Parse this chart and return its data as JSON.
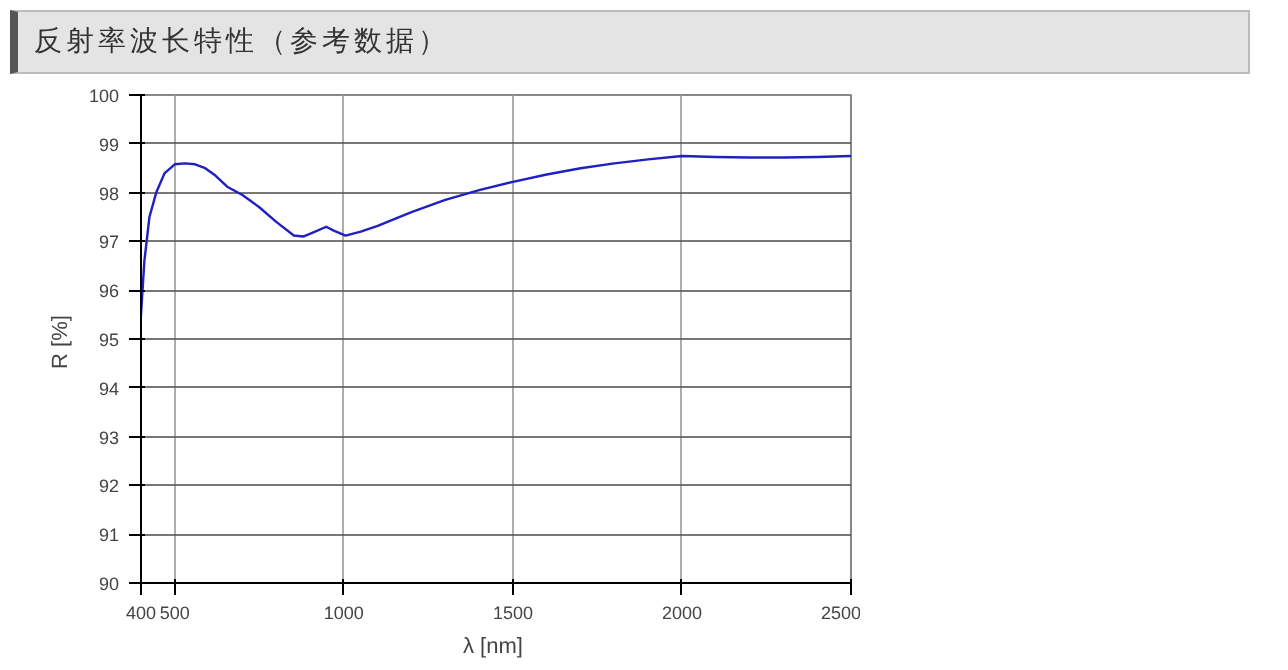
{
  "chart_data": {
    "type": "line",
    "title": "反射率波长特性（参考数据）",
    "xlabel": "λ  [nm]",
    "ylabel": "R  [%]",
    "xlim": [
      400,
      2500
    ],
    "ylim": [
      90,
      100
    ],
    "xticks": [
      400,
      500,
      1000,
      1500,
      2000,
      2500
    ],
    "yticks": [
      90,
      91,
      92,
      93,
      94,
      95,
      96,
      97,
      98,
      99,
      100
    ],
    "grid": true,
    "series": [
      {
        "color": "#2020c0",
        "x": [
          400,
          410,
          425,
          445,
          470,
          500,
          530,
          560,
          590,
          620,
          655,
          700,
          750,
          800,
          852,
          880,
          915,
          948,
          970,
          1005,
          1050,
          1100,
          1200,
          1300,
          1400,
          1500,
          1600,
          1700,
          1800,
          1900,
          2000,
          2100,
          2200,
          2300,
          2400,
          2500
        ],
        "values": [
          95.5,
          96.6,
          97.5,
          98.0,
          98.4,
          98.58,
          98.6,
          98.58,
          98.5,
          98.35,
          98.12,
          97.95,
          97.7,
          97.4,
          97.12,
          97.1,
          97.2,
          97.3,
          97.22,
          97.12,
          97.2,
          97.32,
          97.6,
          97.85,
          98.05,
          98.22,
          98.37,
          98.5,
          98.6,
          98.68,
          98.75,
          98.73,
          98.72,
          98.72,
          98.73,
          98.75
        ]
      }
    ]
  }
}
